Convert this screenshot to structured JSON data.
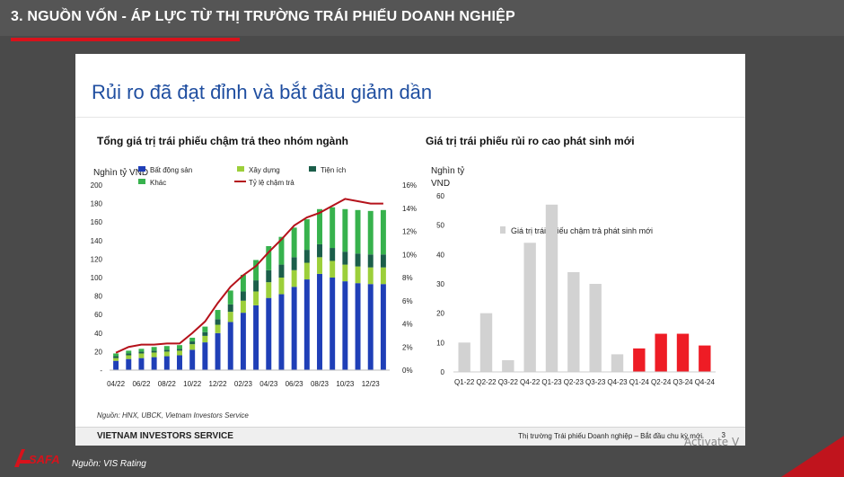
{
  "header": {
    "title": "3. NGUỒN VỐN - ÁP LỰC TỪ THỊ TRƯỜNG TRÁI PHIẾU DOANH NGHIỆP"
  },
  "slide": {
    "heading": "Rủi ro đã đạt đỉnh và bắt đầu giảm dần",
    "source_note": "Nguồn: HNX, UBCK, Vietnam Investors Service",
    "footer_left": "VIETNAM INVESTORS SERVICE",
    "footer_right": "Thị trường Trái phiếu Doanh nghiệp – Bắt đầu chu kỳ mới",
    "page_number": "3"
  },
  "overlay": {
    "activate_text": "Activate V"
  },
  "bottom": {
    "logo_text": "SAFA",
    "source": "Nguồn: VIS Rating"
  },
  "colors": {
    "blue": "#1f3fb7",
    "olive": "#9ccf3a",
    "darkgreen": "#1b5e4a",
    "green": "#37b24d",
    "red": "#b5121b",
    "gray": "#d2d2d2",
    "brightred": "#ee1c25"
  },
  "chart_data": [
    {
      "type": "bar",
      "subtitle": "Tổng giá trị trái phiếu chậm trả theo nhóm ngành",
      "ylabel": "Nghìn tỷ VND",
      "ylim": [
        0,
        200
      ],
      "y2lim": [
        0,
        16
      ],
      "y_ticks": [
        "-",
        "20",
        "40",
        "60",
        "80",
        "100",
        "120",
        "140",
        "160",
        "180",
        "200"
      ],
      "y2_ticks": [
        "0%",
        "2%",
        "4%",
        "6%",
        "8%",
        "10%",
        "12%",
        "14%",
        "16%"
      ],
      "x_tick_labels": [
        "04/22",
        "06/22",
        "08/22",
        "10/22",
        "12/22",
        "02/23",
        "04/23",
        "06/23",
        "08/23",
        "10/23",
        "12/23"
      ],
      "legend": [
        "Bất động sản",
        "Xây dựng",
        "Tiện ích",
        "Khác",
        "Tỷ lệ chậm trả"
      ],
      "categories": [
        "04/22",
        "05/22",
        "06/22",
        "07/22",
        "08/22",
        "09/22",
        "10/22",
        "11/22",
        "12/22",
        "01/23",
        "02/23",
        "03/23",
        "04/23",
        "05/23",
        "06/23",
        "07/23",
        "08/23",
        "09/23",
        "10/23",
        "11/23",
        "12/23",
        "01/24"
      ],
      "series": [
        {
          "name": "Bất động sản",
          "values": [
            10,
            12,
            13,
            14,
            15,
            16,
            22,
            30,
            40,
            52,
            62,
            70,
            78,
            82,
            90,
            98,
            104,
            100,
            96,
            94,
            93,
            93
          ]
        },
        {
          "name": "Xây dựng",
          "values": [
            3,
            4,
            5,
            5,
            5,
            5,
            6,
            7,
            9,
            11,
            13,
            15,
            17,
            18,
            18,
            18,
            18,
            18,
            18,
            18,
            18,
            18
          ]
        },
        {
          "name": "Tiện ích",
          "values": [
            2,
            2,
            2,
            2,
            2,
            2,
            3,
            4,
            6,
            8,
            10,
            12,
            13,
            14,
            14,
            14,
            14,
            14,
            14,
            14,
            14,
            14
          ]
        },
        {
          "name": "Khác",
          "values": [
            3,
            3,
            3,
            4,
            4,
            4,
            4,
            6,
            10,
            15,
            18,
            22,
            26,
            30,
            32,
            33,
            38,
            44,
            46,
            47,
            47,
            48
          ]
        },
        {
          "name": "Tỷ lệ chậm trả",
          "axis": "right",
          "values": [
            1.5,
            2.0,
            2.2,
            2.2,
            2.3,
            2.3,
            3.2,
            4.2,
            5.8,
            7.2,
            8.2,
            9.0,
            10.2,
            11.3,
            12.5,
            13.2,
            13.6,
            14.2,
            14.8,
            14.6,
            14.4,
            14.4
          ]
        }
      ]
    },
    {
      "type": "bar",
      "subtitle": "Giá trị trái phiếu  rủi ro cao phát sinh mới",
      "ylabel": "Nghìn tỷ VND",
      "legend": [
        "Giá trị trái phiếu chậm trả phát sinh mới"
      ],
      "ylim": [
        0,
        60
      ],
      "y_ticks": [
        "0",
        "10",
        "20",
        "30",
        "40",
        "50",
        "60"
      ],
      "categories": [
        "Q1-22",
        "Q2-22",
        "Q3-22",
        "Q4-22",
        "Q1-23",
        "Q2-23",
        "Q3-23",
        "Q4-23",
        "Q1-24",
        "Q2-24",
        "Q3-24",
        "Q4-24"
      ],
      "series": [
        {
          "name": "Giá trị trái phiếu chậm trả phát sinh mới",
          "values": [
            10,
            20,
            4,
            44,
            57,
            34,
            30,
            6,
            8,
            13,
            13,
            9
          ]
        }
      ],
      "highlight_from_index": 8
    }
  ]
}
